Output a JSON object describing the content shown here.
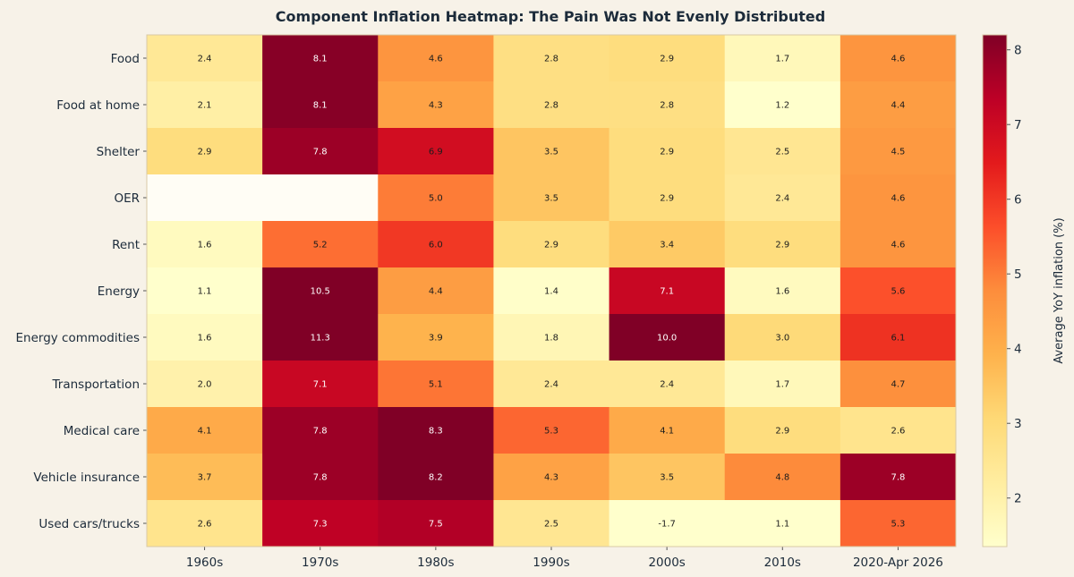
{
  "chart_data": {
    "type": "heatmap",
    "title": "Component Inflation Heatmap: The Pain Was Not Evenly Distributed",
    "xlabel": "",
    "ylabel": "",
    "x_categories": [
      "1960s",
      "1970s",
      "1980s",
      "1990s",
      "2000s",
      "2010s",
      "2020-Apr 2026"
    ],
    "y_categories": [
      "Food",
      "Food at home",
      "Shelter",
      "OER",
      "Rent",
      "Energy",
      "Energy commodities",
      "Transportation",
      "Medical care",
      "Vehicle insurance",
      "Used cars/trucks"
    ],
    "values": [
      [
        2.4,
        8.1,
        4.6,
        2.8,
        2.9,
        1.7,
        4.6
      ],
      [
        2.1,
        8.1,
        4.3,
        2.8,
        2.8,
        1.2,
        4.4
      ],
      [
        2.9,
        7.8,
        6.9,
        3.5,
        2.9,
        2.5,
        4.5
      ],
      [
        null,
        null,
        5.0,
        3.5,
        2.9,
        2.4,
        4.6
      ],
      [
        1.6,
        5.2,
        6.0,
        2.9,
        3.4,
        2.9,
        4.6
      ],
      [
        1.1,
        10.5,
        4.4,
        1.4,
        7.1,
        1.6,
        5.6
      ],
      [
        1.6,
        11.3,
        3.9,
        1.8,
        10.0,
        3.0,
        6.1
      ],
      [
        2.0,
        7.1,
        5.1,
        2.4,
        2.4,
        1.7,
        4.7
      ],
      [
        4.1,
        7.8,
        8.3,
        5.3,
        4.1,
        2.9,
        2.6
      ],
      [
        3.7,
        7.8,
        8.2,
        4.3,
        3.5,
        4.8,
        7.8
      ],
      [
        2.6,
        7.3,
        7.5,
        2.5,
        -1.7,
        1.1,
        5.3
      ]
    ],
    "colorbar": {
      "label": "Average YoY inflation (%)",
      "min": 1.35,
      "max": 8.2,
      "ticks": [
        2,
        3,
        4,
        5,
        6,
        7,
        8
      ],
      "colormap": "YlOrRd"
    },
    "cell_labels": true,
    "grid": false
  }
}
